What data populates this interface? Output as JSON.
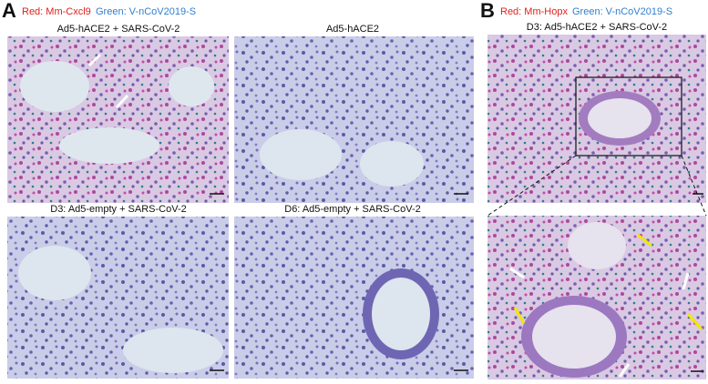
{
  "panel_a": {
    "label": "A",
    "legend": [
      "Red: Mm-Cxcl9",
      "Green: V-nCoV2019-S"
    ],
    "images": [
      {
        "title": "Ad5-hACE2 + SARS-CoV-2"
      },
      {
        "title": "Ad5-hACE2"
      },
      {
        "title": "D3: Ad5-empty + SARS-CoV-2"
      },
      {
        "title": "D6: Ad5-empty + SARS-CoV-2"
      }
    ]
  },
  "panel_b": {
    "label": "B",
    "legend": [
      "Red: Mm-Hopx",
      "Green: V-nCoV2019-S"
    ],
    "images": [
      {
        "title": "D3: Ad5-hACE2 + SARS-CoV-2"
      }
    ]
  }
}
